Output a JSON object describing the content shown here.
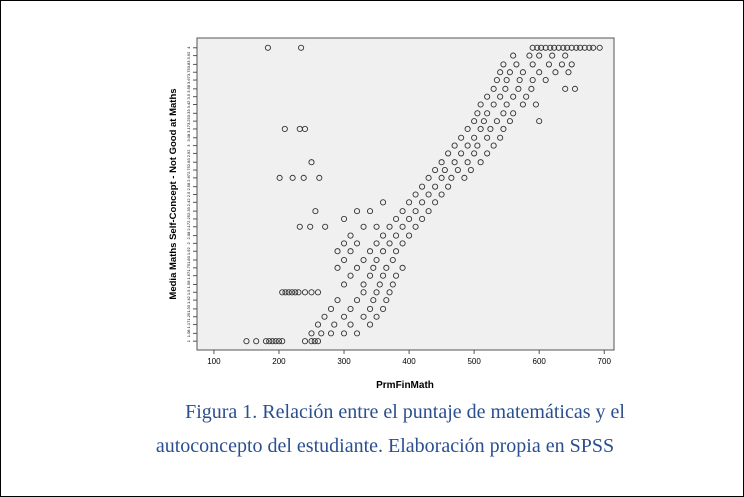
{
  "chart_data": {
    "type": "scatter",
    "x_label": "PrmFinMath",
    "y_label": "Media Maths Self-Concept - Not Good at Maths",
    "xlim": [
      74,
      715
    ],
    "ylim": [
      0.91,
      4.1
    ],
    "xticks": [
      100,
      200,
      300,
      400,
      500,
      600,
      700
    ],
    "yticks": [
      1,
      1.08,
      1.17,
      1.25,
      1.33,
      1.42,
      1.5,
      1.58,
      1.67,
      1.75,
      1.83,
      1.92,
      2,
      2.08,
      2.17,
      2.25,
      2.33,
      2.42,
      2.5,
      2.58,
      2.67,
      2.75,
      2.83,
      2.92,
      3,
      3.08,
      3.17,
      3.25,
      3.33,
      3.42,
      3.5,
      3.58,
      3.67,
      3.75,
      3.83,
      3.92,
      4
    ],
    "color": "#333333",
    "x": [
      183,
      234,
      590,
      597,
      603,
      610,
      617,
      623,
      630,
      637,
      643,
      650,
      657,
      663,
      670,
      677,
      683,
      693,
      560,
      585,
      600,
      620,
      640,
      545,
      565,
      590,
      615,
      635,
      650,
      540,
      555,
      575,
      600,
      625,
      645,
      535,
      550,
      570,
      590,
      610,
      530,
      548,
      568,
      588,
      640,
      655,
      520,
      540,
      560,
      580,
      510,
      530,
      550,
      575,
      595,
      505,
      520,
      545,
      560,
      500,
      515,
      535,
      555,
      600,
      490,
      510,
      525,
      545,
      209,
      232,
      240,
      480,
      500,
      520,
      540,
      470,
      490,
      505,
      530,
      460,
      480,
      500,
      520,
      450,
      470,
      490,
      510,
      250,
      440,
      455,
      475,
      495,
      430,
      450,
      465,
      485,
      201,
      221,
      238,
      262,
      420,
      440,
      460,
      410,
      430,
      450,
      400,
      420,
      440,
      360,
      390,
      410,
      430,
      340,
      320,
      256,
      380,
      400,
      420,
      300,
      370,
      390,
      410,
      330,
      350,
      232,
      248,
      271,
      360,
      380,
      400,
      310,
      350,
      370,
      390,
      320,
      300,
      340,
      360,
      380,
      290,
      310,
      330,
      350,
      375,
      300,
      320,
      345,
      365,
      390,
      290,
      310,
      340,
      360,
      380,
      300,
      330,
      355,
      375,
      205,
      210,
      215,
      220,
      225,
      230,
      240,
      250,
      260,
      330,
      350,
      370,
      290,
      320,
      345,
      365,
      280,
      310,
      340,
      360,
      270,
      300,
      330,
      350,
      260,
      285,
      310,
      340,
      250,
      265,
      280,
      300,
      320,
      150,
      165,
      180,
      185,
      190,
      195,
      200,
      205,
      240,
      250,
      255,
      260
    ],
    "values": [
      4,
      4,
      4,
      4,
      4,
      4,
      4,
      4,
      4,
      4,
      4,
      4,
      4,
      4,
      4,
      4,
      4,
      4,
      3.92,
      3.92,
      3.92,
      3.92,
      3.92,
      3.83,
      3.83,
      3.83,
      3.83,
      3.83,
      3.83,
      3.75,
      3.75,
      3.75,
      3.75,
      3.75,
      3.75,
      3.67,
      3.67,
      3.67,
      3.67,
      3.67,
      3.58,
      3.58,
      3.58,
      3.58,
      3.58,
      3.58,
      3.5,
      3.5,
      3.5,
      3.5,
      3.42,
      3.42,
      3.42,
      3.42,
      3.42,
      3.33,
      3.33,
      3.33,
      3.33,
      3.25,
      3.25,
      3.25,
      3.25,
      3.25,
      3.17,
      3.17,
      3.17,
      3.17,
      3.17,
      3.17,
      3.17,
      3.08,
      3.08,
      3.08,
      3.08,
      3,
      3,
      3,
      3,
      2.92,
      2.92,
      2.92,
      2.92,
      2.83,
      2.83,
      2.83,
      2.83,
      2.83,
      2.75,
      2.75,
      2.75,
      2.75,
      2.67,
      2.67,
      2.67,
      2.67,
      2.67,
      2.67,
      2.67,
      2.67,
      2.58,
      2.58,
      2.58,
      2.5,
      2.5,
      2.5,
      2.42,
      2.42,
      2.42,
      2.42,
      2.33,
      2.33,
      2.33,
      2.33,
      2.33,
      2.33,
      2.25,
      2.25,
      2.25,
      2.25,
      2.17,
      2.17,
      2.17,
      2.17,
      2.17,
      2.17,
      2.17,
      2.17,
      2.08,
      2.08,
      2.08,
      2.08,
      2,
      2,
      2,
      2,
      2,
      1.92,
      1.92,
      1.92,
      1.92,
      1.92,
      1.83,
      1.83,
      1.83,
      1.83,
      1.75,
      1.75,
      1.75,
      1.75,
      1.75,
      1.67,
      1.67,
      1.67,
      1.67,
      1.58,
      1.58,
      1.58,
      1.58,
      1.5,
      1.5,
      1.5,
      1.5,
      1.5,
      1.5,
      1.5,
      1.5,
      1.5,
      1.5,
      1.5,
      1.5,
      1.42,
      1.42,
      1.42,
      1.42,
      1.33,
      1.33,
      1.33,
      1.33,
      1.25,
      1.25,
      1.25,
      1.25,
      1.17,
      1.17,
      1.17,
      1.17,
      1.08,
      1.08,
      1.08,
      1.08,
      1.08,
      1,
      1,
      1,
      1,
      1,
      1,
      1,
      1,
      1,
      1,
      1,
      1
    ]
  },
  "caption": {
    "line1": "Figura 1.  Relación entre el puntaje de matemáticas y el",
    "line2": "autoconcepto del estudiante. Elaboración propia en SPSS"
  }
}
